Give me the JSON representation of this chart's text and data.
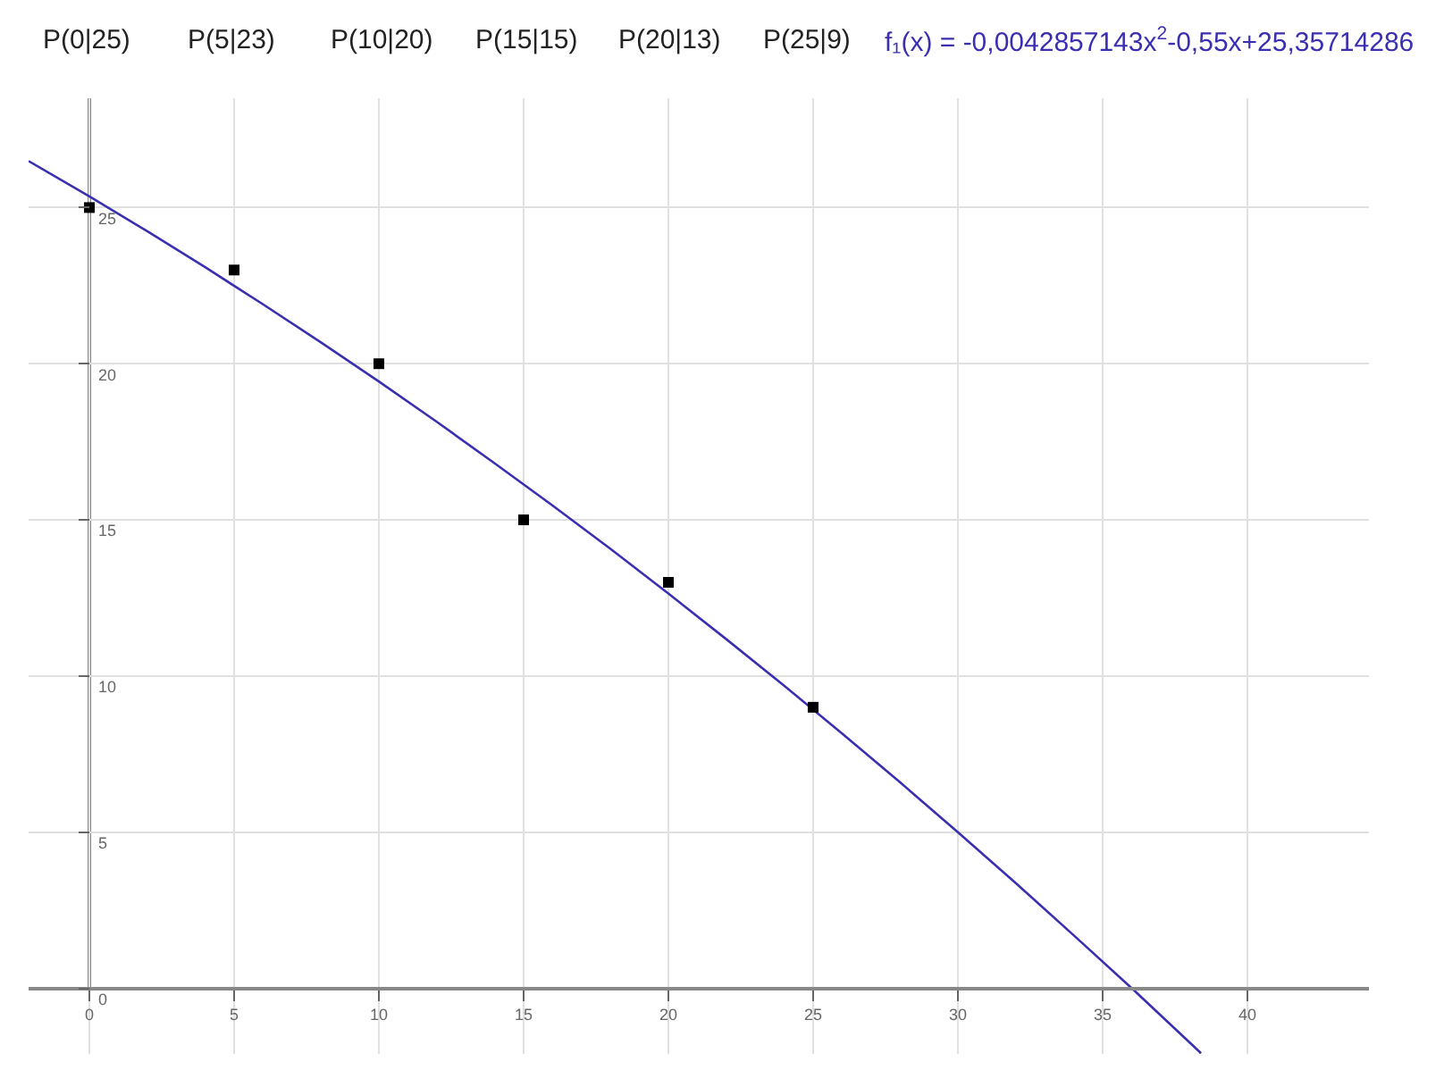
{
  "chart_data": {
    "type": "scatter",
    "annotations": [
      "P(0|25)",
      "P(5|23)",
      "P(10|20)",
      "P(15|15)",
      "P(20|13)",
      "P(25|9)"
    ],
    "xlim": [
      -2.1,
      44.2
    ],
    "ylim": [
      -2.1,
      28.5
    ],
    "xticks": [
      0,
      5,
      10,
      15,
      20,
      25,
      30,
      35,
      40
    ],
    "yticks": [
      0,
      5,
      10,
      15,
      20,
      25
    ],
    "grid": true,
    "legend": false,
    "series": [
      {
        "type": "scatter",
        "marker": "square",
        "color": "#000000",
        "x": [
          0,
          5,
          10,
          15,
          20,
          25
        ],
        "values": [
          25,
          23,
          20,
          15,
          13,
          9
        ]
      },
      {
        "type": "line",
        "marker": "none",
        "name": "f₁(x) = -0,0042857143x$^{2}$-0,55x+25,35714286",
        "color": "#3a2fb0",
        "x": [
          -2.1,
          0,
          2,
          4,
          6,
          8,
          10,
          12,
          14,
          16,
          18,
          20,
          22,
          24,
          26,
          28,
          30,
          32,
          34,
          36,
          38,
          38.4
        ],
        "values": [
          26.49,
          25.36,
          24.24,
          23.09,
          21.9,
          20.68,
          19.43,
          18.14,
          16.81,
          15.46,
          14.07,
          12.64,
          11.18,
          9.69,
          8.16,
          6.6,
          5.0,
          3.37,
          1.7,
          0.01,
          -1.73,
          -2.08
        ]
      }
    ]
  }
}
